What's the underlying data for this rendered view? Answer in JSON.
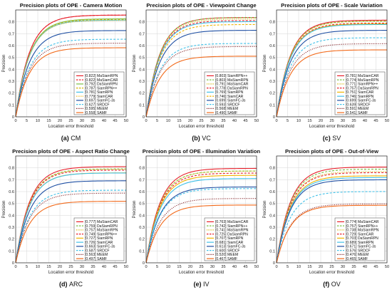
{
  "figure": {
    "background": "#ffffff"
  },
  "palette": {
    "MaSiamRPN": "#e8202a",
    "MaSiamCAR": "#e8202a",
    "DaSiamRPN": "#7bc043",
    "SiamRPN++": "#d4b400",
    "SiamCAR": "#f0b400",
    "SiamRPN": "#41c1e8",
    "SiamFC-3s": "#1e4fa3",
    "SRDCF": "#41c1e8",
    "MEEM": "#7a1016",
    "SAMF": "#f26a1b"
  },
  "chart_data": [
    {
      "type": "line",
      "title": "Precision plots of OPE - Camera Motion",
      "caption_letter": "(a)",
      "caption_text": "CM",
      "xlabel": "Location error threshold",
      "ylabel": "Precision",
      "xlim": [
        0,
        50
      ],
      "ylim": [
        0,
        0.9
      ],
      "xticks": [
        0,
        5,
        10,
        15,
        20,
        25,
        30,
        35,
        40,
        45,
        50
      ],
      "yticks": [
        0,
        0.1,
        0.2,
        0.3,
        0.4,
        0.5,
        0.6,
        0.7,
        0.8
      ],
      "legend_position": "lower right",
      "series": [
        {
          "name": "MaSiamRPN",
          "label": "[0.822] MaSiamRPN",
          "score": 0.822,
          "color": "#e8202a",
          "dash": "solid"
        },
        {
          "name": "MaSiamCAR",
          "label": "[0.822] MaSiamCAR",
          "score": 0.822,
          "color": "#e8202a",
          "dash": "dashed"
        },
        {
          "name": "DaSiamRPN",
          "label": "[0.792] DaSiamRPN",
          "score": 0.792,
          "color": "#7bc043",
          "dash": "solid"
        },
        {
          "name": "SiamRPN++",
          "label": "[0.787] SiamRPN++",
          "score": 0.787,
          "color": "#d4b400",
          "dash": "dashed"
        },
        {
          "name": "SiamRPN",
          "label": "[0.781] SiamRPN",
          "score": 0.781,
          "color": "#41c1e8",
          "dash": "solid"
        },
        {
          "name": "SiamCAR",
          "label": "[0.779] SiamCAR",
          "score": 0.779,
          "color": "#f0b400",
          "dash": "dotted"
        },
        {
          "name": "SiamFC-3s",
          "label": "[0.697] SiamFC-3s",
          "score": 0.697,
          "color": "#1e4fa3",
          "dash": "solid"
        },
        {
          "name": "SRDCF",
          "label": "[0.627] SRDCF",
          "score": 0.627,
          "color": "#41c1e8",
          "dash": "dashed"
        },
        {
          "name": "MEEM",
          "label": "[0.595] MEEM",
          "score": 0.595,
          "color": "#7a1016",
          "dash": "dotted"
        },
        {
          "name": "SAMF",
          "label": "[0.558] SAMF",
          "score": 0.558,
          "color": "#f26a1b",
          "dash": "solid"
        }
      ]
    },
    {
      "type": "line",
      "title": "Precision plots of OPE - Viewpoint Change",
      "caption_letter": "(b)",
      "caption_text": "VC",
      "xlabel": "Location error threshold",
      "ylabel": "Precision",
      "xlim": [
        0,
        50
      ],
      "ylim": [
        0,
        0.9
      ],
      "xticks": [
        0,
        5,
        10,
        15,
        20,
        25,
        30,
        35,
        40,
        45,
        50
      ],
      "yticks": [
        0,
        0.1,
        0.2,
        0.3,
        0.4,
        0.5,
        0.6,
        0.7,
        0.8
      ],
      "legend_position": "lower right",
      "series": [
        {
          "name": "SiamRPN++",
          "label": "[0.803] SiamRPN++",
          "score": 0.803,
          "color": "#e8202a",
          "dash": "solid"
        },
        {
          "name": "MaSiamRPN",
          "label": "[0.803] MaSiamRPN",
          "score": 0.803,
          "color": "#7bc043",
          "dash": "dashed"
        },
        {
          "name": "MaSiamCAR",
          "label": "[0.791] MaSiamCAR",
          "score": 0.791,
          "color": "#d4b400",
          "dash": "dotted"
        },
        {
          "name": "DaSiamRPN",
          "label": "[0.778] DaSiamRPN",
          "score": 0.778,
          "color": "#e8202a",
          "dash": "dashed"
        },
        {
          "name": "SiamRPN",
          "label": "[0.769] SiamRPN",
          "score": 0.769,
          "color": "#41c1e8",
          "dash": "solid"
        },
        {
          "name": "SiamCAR",
          "label": "[0.746] SiamCAR",
          "score": 0.746,
          "color": "#f0b400",
          "dash": "dashed"
        },
        {
          "name": "SiamFC-3s",
          "label": "[0.699] SiamFC-3s",
          "score": 0.699,
          "color": "#1e4fa3",
          "dash": "solid"
        },
        {
          "name": "SRDCF",
          "label": "[0.593] SRDCF",
          "score": 0.593,
          "color": "#41c1e8",
          "dash": "dashed"
        },
        {
          "name": "MEEM",
          "label": "[0.568] MEEM",
          "score": 0.568,
          "color": "#7a1016",
          "dash": "dotted"
        },
        {
          "name": "SAMF",
          "label": "[0.490] SAMF",
          "score": 0.49,
          "color": "#f26a1b",
          "dash": "solid"
        }
      ]
    },
    {
      "type": "line",
      "title": "Precision plots of OPE - Scale Variation",
      "caption_letter": "(c)",
      "caption_text": "SV",
      "xlabel": "Location error threshold",
      "ylabel": "Precision",
      "xlim": [
        0,
        50
      ],
      "ylim": [
        0,
        0.9
      ],
      "xticks": [
        0,
        5,
        10,
        15,
        20,
        25,
        30,
        35,
        40,
        45,
        50
      ],
      "yticks": [
        0,
        0.1,
        0.2,
        0.3,
        0.4,
        0.5,
        0.6,
        0.7,
        0.8
      ],
      "legend_position": "lower right",
      "series": [
        {
          "name": "MaSiamCAR",
          "label": "[0.781] MaSiamCAR",
          "score": 0.781,
          "color": "#e8202a",
          "dash": "solid"
        },
        {
          "name": "MaSiamRPN",
          "label": "[0.774] MaSiamRPN",
          "score": 0.774,
          "color": "#7bc043",
          "dash": "dashed"
        },
        {
          "name": "SiamRPN++",
          "label": "[0.771] SiamRPN++",
          "score": 0.771,
          "color": "#d4b400",
          "dash": "dotted"
        },
        {
          "name": "DaSiamRPN",
          "label": "[0.757] DaSiamRPN",
          "score": 0.757,
          "color": "#e8202a",
          "dash": "dashed"
        },
        {
          "name": "SiamCAR",
          "label": "[0.751] SiamCAR",
          "score": 0.751,
          "color": "#f0b400",
          "dash": "solid"
        },
        {
          "name": "SiamRPN",
          "label": "[0.746] SiamRPN",
          "score": 0.746,
          "color": "#41c1e8",
          "dash": "solid"
        },
        {
          "name": "SiamFC-3s",
          "label": "[0.699] SiamFC-3s",
          "score": 0.699,
          "color": "#1e4fa3",
          "dash": "solid"
        },
        {
          "name": "SRDCF",
          "label": "[0.639] SRDCF",
          "score": 0.639,
          "color": "#41c1e8",
          "dash": "dashed"
        },
        {
          "name": "MEEM",
          "label": "[0.591] MEEM",
          "score": 0.591,
          "color": "#7a1016",
          "dash": "dotted"
        },
        {
          "name": "SAMF",
          "label": "[0.541] SAMF",
          "score": 0.541,
          "color": "#f26a1b",
          "dash": "solid"
        }
      ]
    },
    {
      "type": "line",
      "title": "Precision plots of OPE - Aspect Ratio Change",
      "caption_letter": "(d)",
      "caption_text": "ARC",
      "xlabel": "Location error threshold",
      "ylabel": "Precision",
      "xlim": [
        0,
        50
      ],
      "ylim": [
        0,
        0.9
      ],
      "xticks": [
        0,
        5,
        10,
        15,
        20,
        25,
        30,
        35,
        40,
        45,
        50
      ],
      "yticks": [
        0,
        0.1,
        0.2,
        0.3,
        0.4,
        0.5,
        0.6,
        0.7,
        0.8
      ],
      "legend_position": "lower right",
      "series": [
        {
          "name": "MaSiamCAR",
          "label": "[0.777] MaSiamCAR",
          "score": 0.777,
          "color": "#e8202a",
          "dash": "solid"
        },
        {
          "name": "DaSiamRPN",
          "label": "[0.759] DaSiamRPN",
          "score": 0.759,
          "color": "#7bc043",
          "dash": "dashed"
        },
        {
          "name": "MaSiamRPN",
          "label": "[0.757] MaSiamRPN",
          "score": 0.757,
          "color": "#d4b400",
          "dash": "dotted"
        },
        {
          "name": "SiamRPN++",
          "label": "[0.749] SiamRPN++",
          "score": 0.749,
          "color": "#e8202a",
          "dash": "dashed"
        },
        {
          "name": "SiamRPN",
          "label": "[0.727] SiamRPN",
          "score": 0.727,
          "color": "#f0b400",
          "dash": "solid"
        },
        {
          "name": "SiamCAR",
          "label": "[0.726] SiamCAR",
          "score": 0.726,
          "color": "#41c1e8",
          "dash": "solid"
        },
        {
          "name": "SiamFC-3s",
          "label": "[0.663] SiamFC-3s",
          "score": 0.663,
          "color": "#1e4fa3",
          "dash": "solid"
        },
        {
          "name": "SRDCF",
          "label": "[0.587] SRDCF",
          "score": 0.587,
          "color": "#41c1e8",
          "dash": "dashed"
        },
        {
          "name": "MEEM",
          "label": "[0.563] MEEM",
          "score": 0.563,
          "color": "#7a1016",
          "dash": "dotted"
        },
        {
          "name": "SAMF",
          "label": "[0.497] SAMF",
          "score": 0.497,
          "color": "#f26a1b",
          "dash": "solid"
        }
      ]
    },
    {
      "type": "line",
      "title": "Precision plots of OPE - Illumination Variation",
      "caption_letter": "(e)",
      "caption_text": "IV",
      "xlabel": "Location error threshold",
      "ylabel": "Precision",
      "xlim": [
        0,
        50
      ],
      "ylim": [
        0,
        0.9
      ],
      "xticks": [
        0,
        5,
        10,
        15,
        20,
        25,
        30,
        35,
        40,
        45,
        50
      ],
      "yticks": [
        0,
        0.1,
        0.2,
        0.3,
        0.4,
        0.5,
        0.6,
        0.7,
        0.8
      ],
      "legend_position": "lower right",
      "series": [
        {
          "name": "MaSiamCAR",
          "label": "[0.763] MaSiamCAR",
          "score": 0.763,
          "color": "#e8202a",
          "dash": "solid"
        },
        {
          "name": "SiamRPN++",
          "label": "[0.742] SiamRPN++",
          "score": 0.742,
          "color": "#7bc043",
          "dash": "dashed"
        },
        {
          "name": "MaSiamRPN",
          "label": "[0.741] MaSiamRPN",
          "score": 0.741,
          "color": "#d4b400",
          "dash": "dotted"
        },
        {
          "name": "DaSiamRPN",
          "label": "[0.725] DaSiamRPN",
          "score": 0.725,
          "color": "#e8202a",
          "dash": "dashed"
        },
        {
          "name": "SiamRPN",
          "label": "[0.707] SiamRPN",
          "score": 0.707,
          "color": "#f0b400",
          "dash": "solid"
        },
        {
          "name": "SiamCAR",
          "label": "[0.681] SiamCAR",
          "score": 0.681,
          "color": "#41c1e8",
          "dash": "solid"
        },
        {
          "name": "SiamFC-3s",
          "label": "[0.613] SiamFC-3s",
          "score": 0.613,
          "color": "#1e4fa3",
          "dash": "solid"
        },
        {
          "name": "SRDCF",
          "label": "[0.600] SRDCF",
          "score": 0.6,
          "color": "#41c1e8",
          "dash": "dashed"
        },
        {
          "name": "MEEM",
          "label": "[0.520] MEEM",
          "score": 0.52,
          "color": "#7a1016",
          "dash": "dotted"
        },
        {
          "name": "SAMF",
          "label": "[0.467] SAMF",
          "score": 0.467,
          "color": "#f26a1b",
          "dash": "solid"
        }
      ]
    },
    {
      "type": "line",
      "title": "Precision plots of OPE - Out-of-View",
      "caption_letter": "(f)",
      "caption_text": "OV",
      "xlabel": "Location error threshold",
      "ylabel": "Precision",
      "xlim": [
        0,
        50
      ],
      "ylim": [
        0,
        0.9
      ],
      "xticks": [
        0,
        5,
        10,
        15,
        20,
        25,
        30,
        35,
        40,
        45,
        50
      ],
      "yticks": [
        0,
        0.1,
        0.2,
        0.3,
        0.4,
        0.5,
        0.6,
        0.7,
        0.8
      ],
      "legend_position": "lower right",
      "series": [
        {
          "name": "MaSiamCAR",
          "label": "[0.774] MaSiamCAR",
          "score": 0.774,
          "color": "#e8202a",
          "dash": "solid"
        },
        {
          "name": "SiamRPN++",
          "label": "[0.757] SiamRPN++",
          "score": 0.757,
          "color": "#7bc043",
          "dash": "dashed"
        },
        {
          "name": "MaSiamRPN",
          "label": "[0.738] MaSiamRPN",
          "score": 0.738,
          "color": "#d4b400",
          "dash": "dotted"
        },
        {
          "name": "SiamCAR",
          "label": "[0.729] SiamCAR",
          "score": 0.729,
          "color": "#e8202a",
          "dash": "dashed"
        },
        {
          "name": "DaSiamRPN",
          "label": "[0.703] DaSiamRPN",
          "score": 0.703,
          "color": "#f0b400",
          "dash": "solid"
        },
        {
          "name": "SiamRPN",
          "label": "[0.689] SiamRPN",
          "score": 0.689,
          "color": "#41c1e8",
          "dash": "solid"
        },
        {
          "name": "SiamFC-3s",
          "label": "[0.671] SiamFC-3s",
          "score": 0.671,
          "color": "#1e4fa3",
          "dash": "solid"
        },
        {
          "name": "SRDCF",
          "label": "[0.576] SRDCF",
          "score": 0.576,
          "color": "#41c1e8",
          "dash": "dashed"
        },
        {
          "name": "MEEM",
          "label": "[0.476] MEEM",
          "score": 0.476,
          "color": "#7a1016",
          "dash": "dotted"
        },
        {
          "name": "SAMF",
          "label": "[0.465] SAMF",
          "score": 0.465,
          "color": "#f26a1b",
          "dash": "solid"
        }
      ]
    }
  ]
}
